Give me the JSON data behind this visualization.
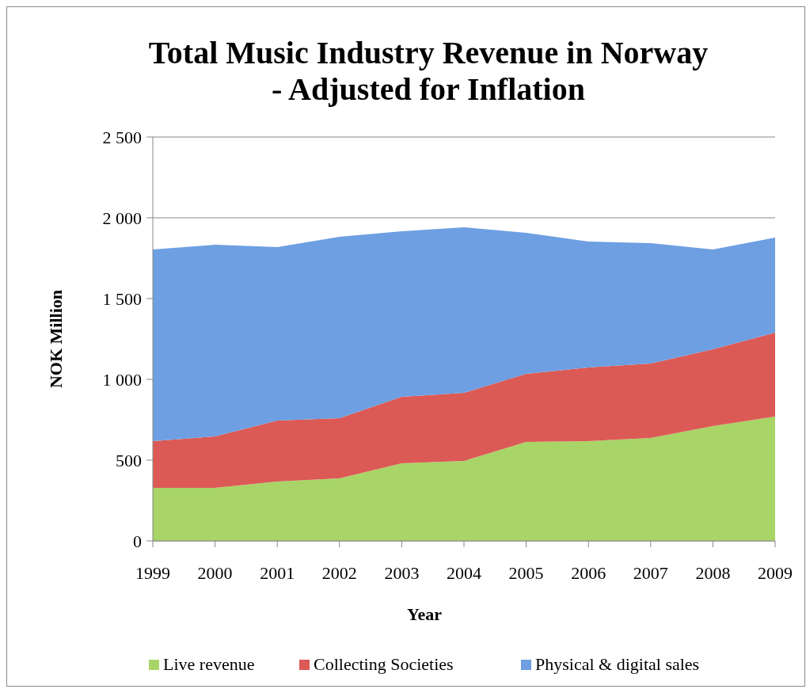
{
  "chart_data": {
    "type": "area",
    "stacked": true,
    "title": "Total Music Industry Revenue in Norway\n- Adjusted for Inflation",
    "xlabel": "Year",
    "ylabel": "NOK Million",
    "categories": [
      "1999",
      "2000",
      "2001",
      "2002",
      "2003",
      "2004",
      "2005",
      "2006",
      "2007",
      "2008",
      "2009"
    ],
    "series": [
      {
        "name": "Live revenue",
        "color": "#a9d468",
        "values": [
          328,
          328,
          368,
          387,
          480,
          495,
          613,
          618,
          637,
          711,
          770
        ]
      },
      {
        "name": "Collecting Societies",
        "color": "#dc5a55",
        "values": [
          290,
          319,
          377,
          373,
          412,
          422,
          421,
          456,
          461,
          475,
          519
        ]
      },
      {
        "name": "Physical & digital sales",
        "color": "#6d9fe2",
        "values": [
          1186,
          1186,
          1074,
          1122,
          1025,
          1024,
          873,
          779,
          745,
          618,
          588
        ]
      }
    ],
    "ylim": [
      0,
      2500
    ],
    "yticks": [
      0,
      {
        "value": 500,
        "label": "500"
      },
      {
        "value": 1000,
        "label": "1 000"
      },
      {
        "value": 1500,
        "label": "1 500"
      },
      {
        "value": 2000,
        "label": "2 000"
      },
      {
        "value": 2500,
        "label": "2 500"
      }
    ],
    "grid": "y",
    "legend": "bottom"
  }
}
